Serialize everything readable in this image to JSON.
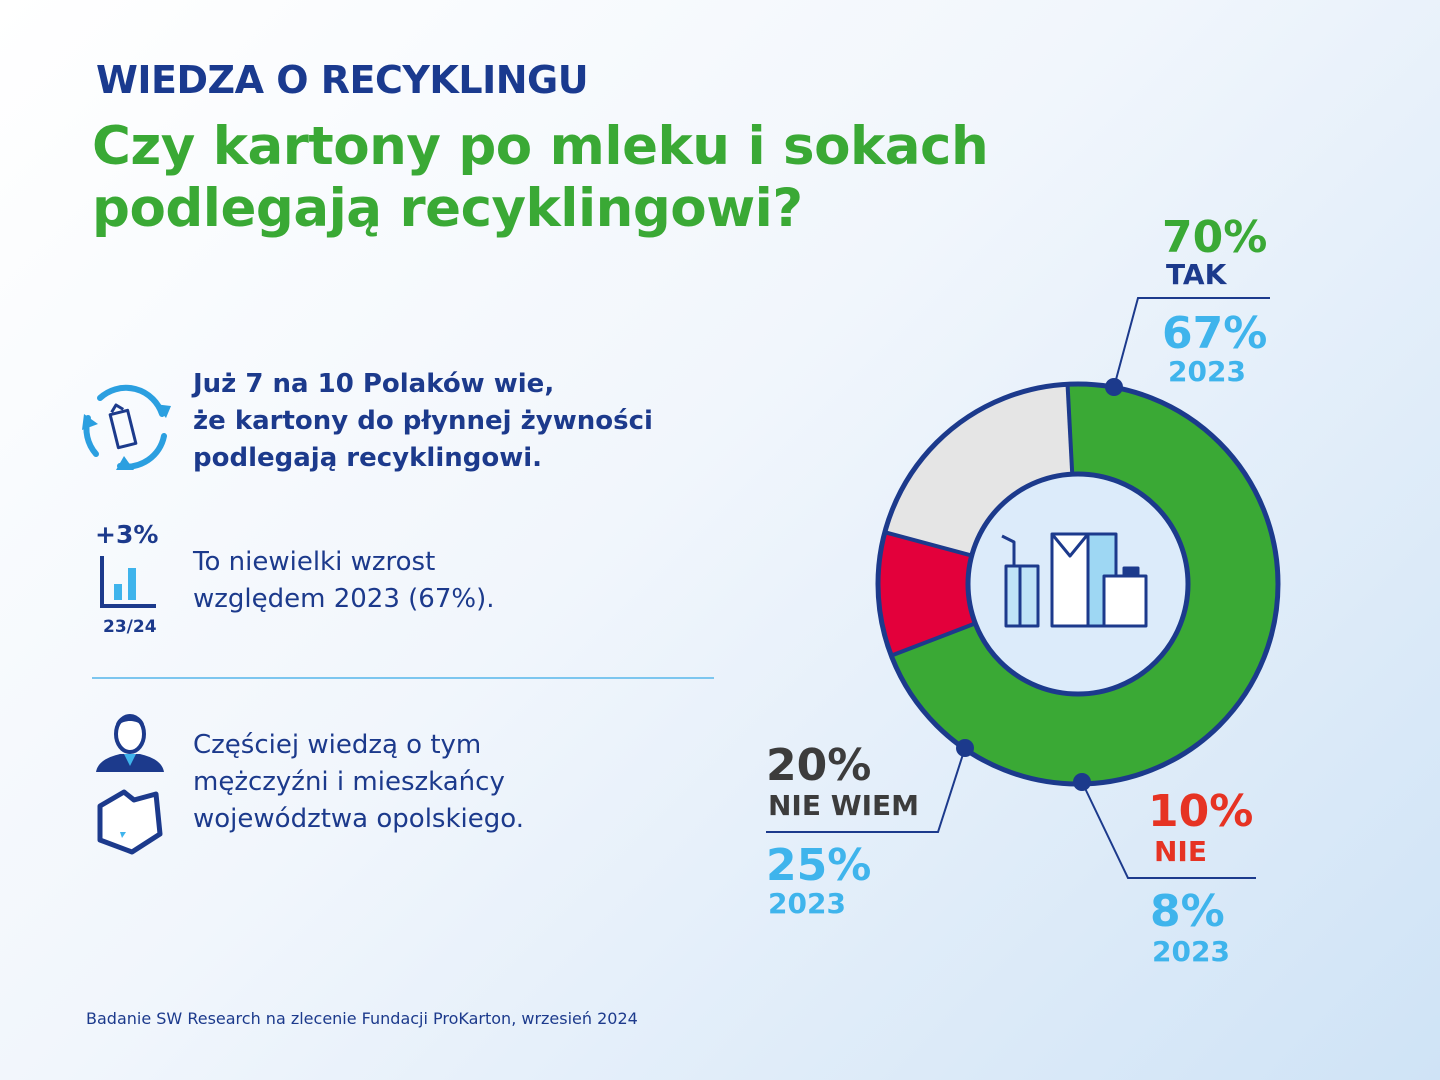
{
  "header": {
    "kicker": "WIEDZA O RECYKLINGU",
    "question_line1": "Czy kartony po mleku i sokach",
    "question_line2": "podlegają recyklingowi?"
  },
  "facts": {
    "fact1_lines": [
      "Już 7 na 10 Polaków wie,",
      "że kartony do płynnej żywności",
      "podlegają recyklingowi."
    ],
    "growth_badge": "+3%",
    "growth_period": "23/24",
    "fact2_lines": [
      "To niewielki wzrost",
      "względem 2023 (67%)."
    ],
    "fact3_lines": [
      "Częściej wiedzą o tym",
      "mężczyźni i mieszkańcy",
      "województwa opolskiego."
    ]
  },
  "source": "Badanie SW Research na zlecenie Fundacji ProKarton, wrzesień 2024",
  "colors": {
    "navy": "#1c3a8c",
    "green": "#3aa935",
    "red": "#e3003b",
    "red_label": "#e63323",
    "grey_slice": "#e5e5e5",
    "grey_label": "#3c3c3c",
    "light_blue": "#3fb4ec"
  },
  "icons": [
    "recycle-carton-icon",
    "bar-chart-growth-icon",
    "man-avatar-icon",
    "opolskie-map-icon",
    "beverage-cartons-icon"
  ],
  "chart_data": {
    "type": "pie",
    "style": "donut",
    "categories": [
      "TAK",
      "NIE",
      "NIE WIEM"
    ],
    "values": [
      70,
      10,
      20
    ],
    "value_labels": [
      "70%",
      "10%",
      "20%"
    ],
    "comparison_label": "2023",
    "comparison_values": [
      67,
      8,
      25
    ],
    "comparison_value_labels": [
      "67%",
      "8%",
      "25%"
    ],
    "slice_colors": [
      "#3aa935",
      "#e3003b",
      "#e5e5e5"
    ]
  }
}
